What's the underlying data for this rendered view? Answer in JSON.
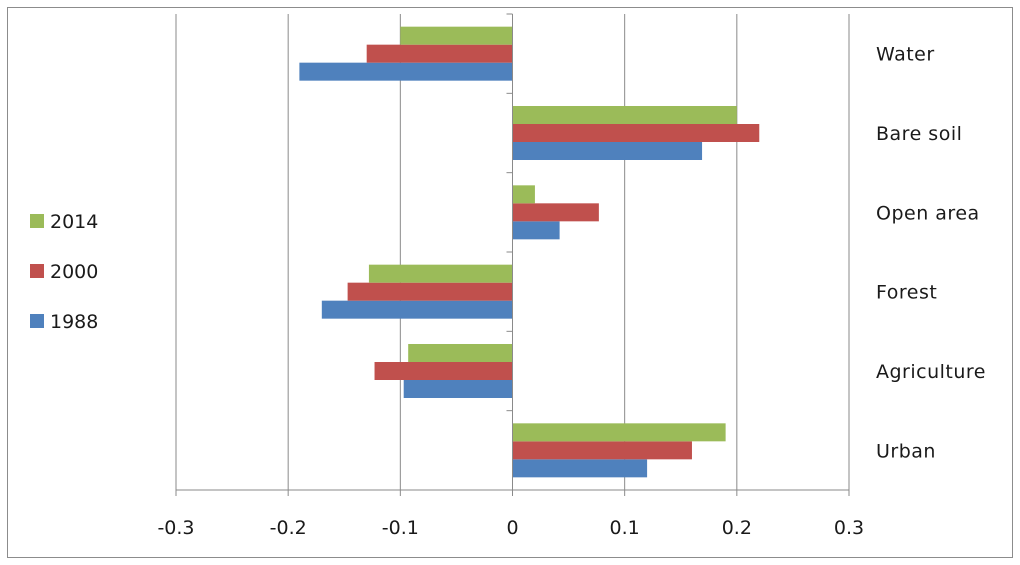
{
  "chart_data": {
    "type": "bar",
    "orientation": "horizontal",
    "title": "",
    "xlabel": "",
    "ylabel": "",
    "categories": [
      "Urban",
      "Agriculture",
      "Forest",
      "Open area",
      "Bare soil",
      "Water"
    ],
    "series": [
      {
        "name": "1988",
        "color": "#4f81bd",
        "values": [
          0.12,
          -0.097,
          -0.17,
          0.042,
          0.169,
          -0.19
        ]
      },
      {
        "name": "2000",
        "color": "#c0504d",
        "values": [
          0.16,
          -0.123,
          -0.147,
          0.077,
          0.22,
          -0.13
        ]
      },
      {
        "name": "2014",
        "color": "#9bbb59",
        "values": [
          0.19,
          -0.093,
          -0.128,
          0.02,
          0.2,
          -0.1
        ]
      }
    ],
    "xlim": [
      -0.3,
      0.3
    ],
    "x_ticks": [
      "-0.3",
      "-0.2",
      "-0.1",
      "0",
      "0.1",
      "0.2",
      "0.3"
    ],
    "grid": "vertical major gridlines",
    "legend_position": "left",
    "legend_order": [
      "2014",
      "2000",
      "1988"
    ]
  }
}
